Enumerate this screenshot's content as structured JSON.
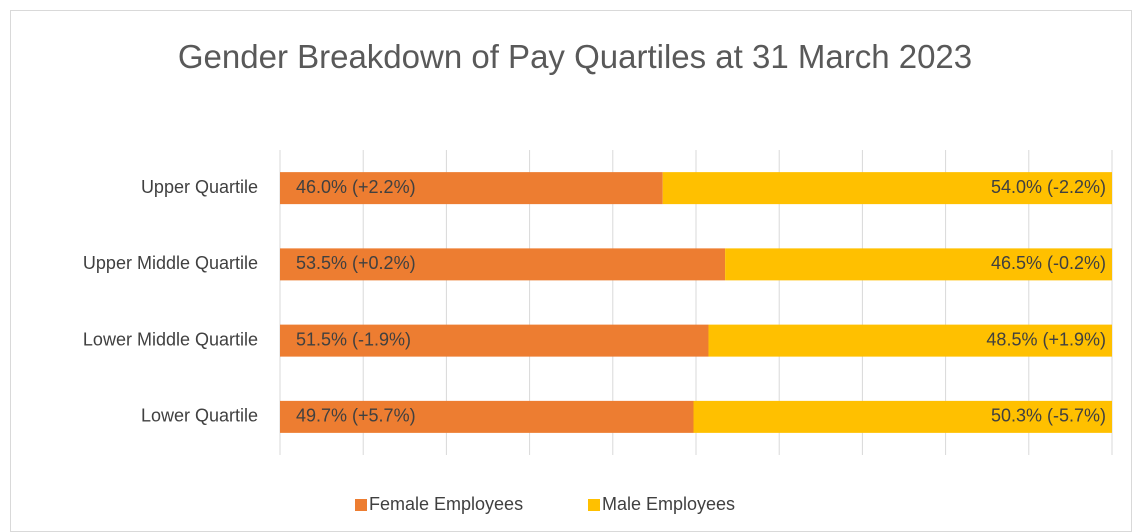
{
  "chart_data": {
    "type": "stacked_bar_horizontal",
    "title": "Gender Breakdown of Pay Quartiles at 31 March 2023",
    "categories": [
      "Upper Quartile",
      "Upper Middle Quartile",
      "Lower Middle Quartile",
      "Lower Quartile"
    ],
    "series": [
      {
        "name": "Female Employees",
        "color": "#ed7d31",
        "values": [
          46.0,
          53.5,
          51.5,
          49.7
        ],
        "value_labels": [
          "46.0% (+2.2%)",
          "53.5% (+0.2%)",
          "51.5% (-1.9%)",
          "49.7% (+5.7%)"
        ]
      },
      {
        "name": "Male Employees",
        "color": "#ffc000",
        "values": [
          54.0,
          46.5,
          48.5,
          50.3
        ],
        "value_labels": [
          "54.0% (-2.2%)",
          "46.5% (-0.2%)",
          "48.5% (+1.9%)",
          "50.3% (-5.7%)"
        ]
      }
    ],
    "xlim": [
      0,
      100
    ],
    "xticks": [
      0,
      10,
      20,
      30,
      40,
      50,
      60,
      70,
      80,
      90,
      100
    ],
    "grid": true,
    "legend": "bottom"
  }
}
